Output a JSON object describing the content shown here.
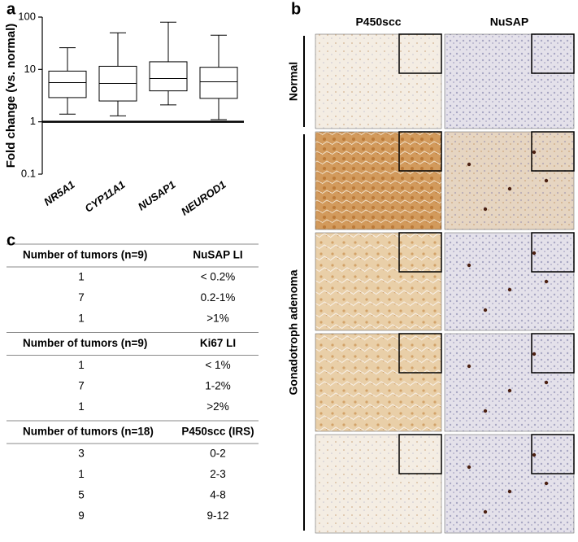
{
  "panels": [
    "a",
    "b",
    "c"
  ],
  "chart_data": {
    "type": "box",
    "ylabel": "Fold change (vs. normal)",
    "categories": [
      "NR5A1",
      "CYP11A1",
      "NUSAP1",
      "NEUROD1"
    ],
    "min": [
      1.4,
      1.3,
      2.1,
      1.1
    ],
    "q1": [
      2.9,
      2.5,
      3.9,
      2.8
    ],
    "median": [
      5.6,
      5.4,
      6.7,
      5.8
    ],
    "q3": [
      9.3,
      11.5,
      14,
      11
    ],
    "max": [
      26,
      50,
      80,
      45
    ],
    "ylim": [
      0.1,
      100
    ],
    "yticks": [
      0.1,
      1,
      10,
      100
    ],
    "log_scale": true,
    "reference_line": 1,
    "color": "#000000"
  },
  "images": {
    "columns": [
      "P450scc",
      "NuSAP"
    ],
    "groups": [
      "Normal",
      "Gonadotroph adenoma"
    ]
  },
  "table": {
    "sections": [
      {
        "header": [
          "Number of tumors  (n=9)",
          "NuSAP LI"
        ],
        "rows": [
          [
            "1",
            "< 0.2%"
          ],
          [
            "7",
            "0.2-1%"
          ],
          [
            "1",
            ">1%"
          ]
        ]
      },
      {
        "header": [
          "Number  of tumors  (n=9)",
          "Ki67 LI"
        ],
        "rows": [
          [
            "1",
            "< 1%"
          ],
          [
            "7",
            "1-2%"
          ],
          [
            "1",
            ">2%"
          ]
        ]
      },
      {
        "header": [
          "Number  of tumors  (n=18)",
          "P450scc (IRS)"
        ],
        "rows": [
          [
            "3",
            "0-2"
          ],
          [
            "1",
            "2-3"
          ],
          [
            "5",
            "4-8"
          ],
          [
            "9",
            "9-12"
          ]
        ]
      }
    ]
  }
}
